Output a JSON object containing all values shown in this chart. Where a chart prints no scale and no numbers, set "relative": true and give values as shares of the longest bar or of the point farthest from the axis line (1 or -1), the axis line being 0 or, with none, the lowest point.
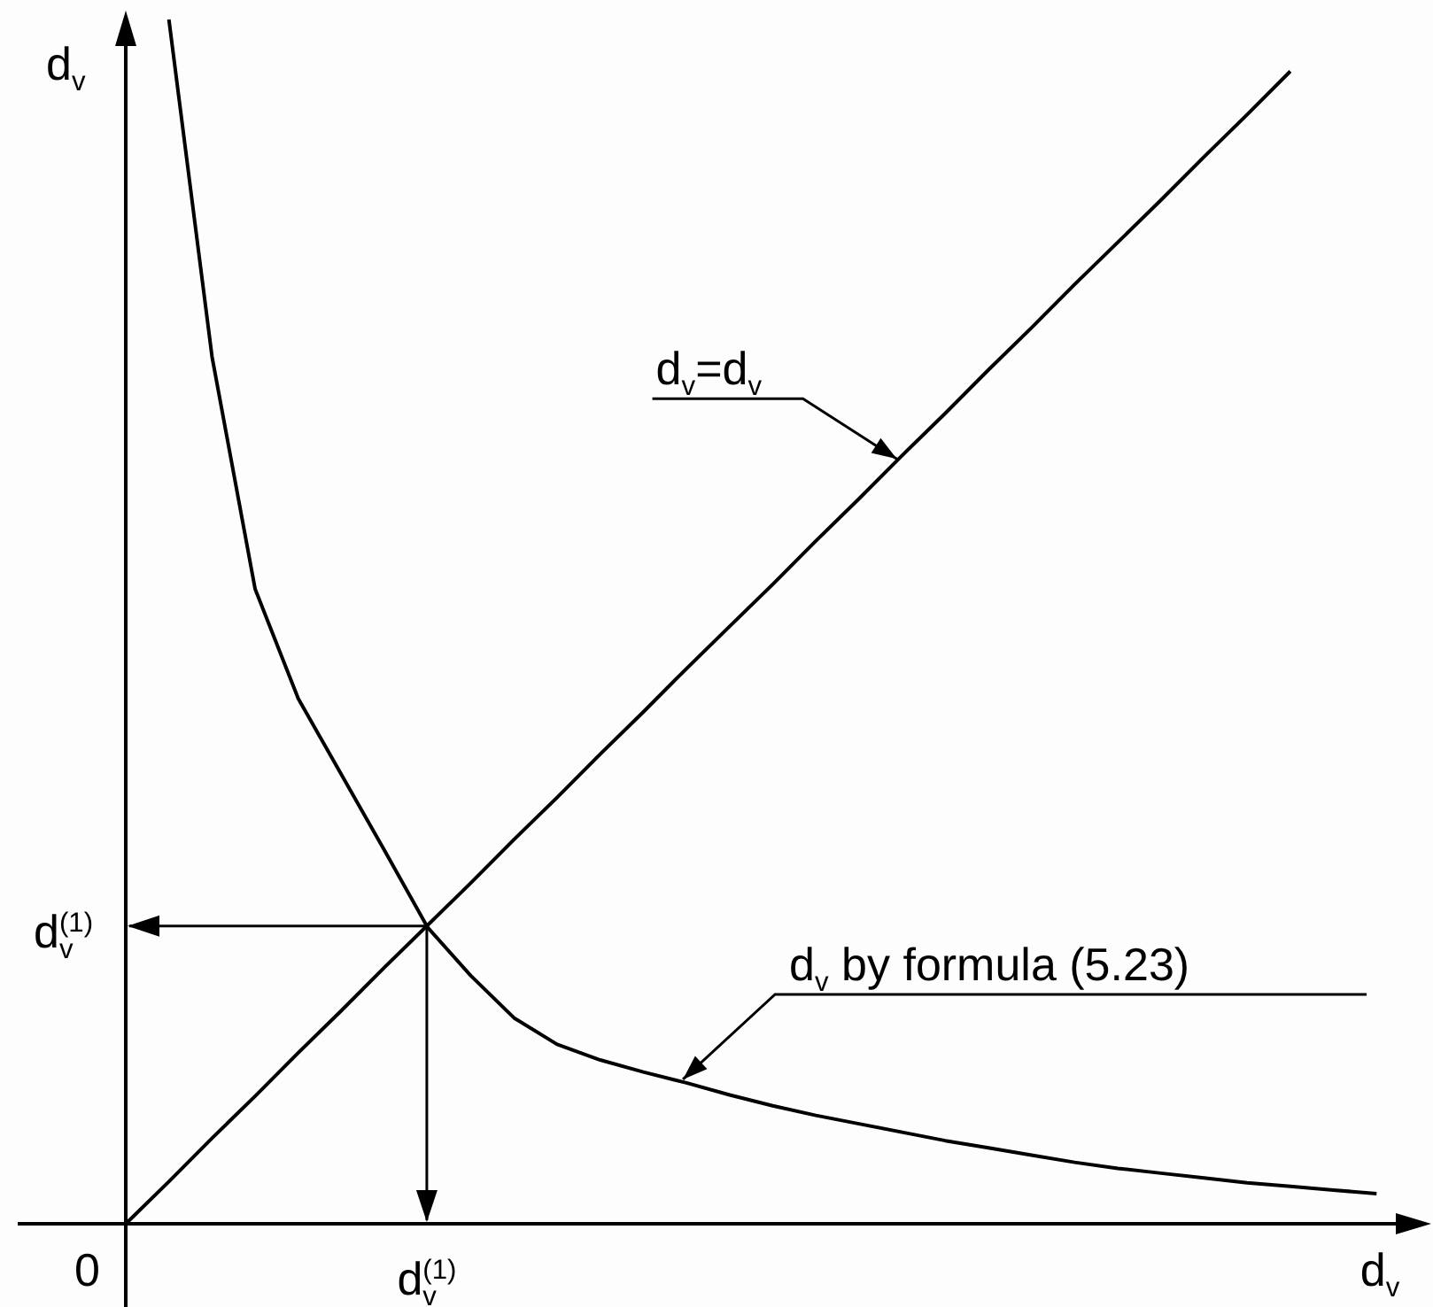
{
  "chart_data": {
    "type": "line",
    "relative": true,
    "xlabel": "d$_{v}$",
    "ylabel": "d$_{v}$",
    "annotations": [
      "0",
      "d$_{v}$$^{(1)}$",
      "d$_{v}$$^{(1)}$"
    ],
    "marker": "none",
    "line_style": "solid",
    "categories": [
      null,
      null,
      null,
      null,
      null,
      null,
      null,
      null,
      null,
      null,
      null,
      null,
      null,
      null,
      null,
      null,
      null,
      null,
      null,
      null,
      null,
      null,
      null,
      null,
      null,
      null,
      null,
      null,
      null,
      null
    ],
    "series": [
      {
        "name": "d$_{v}$=d$_{v}$",
        "color": "#000000",
        "values": [
          0,
          0.035,
          0.071,
          0.106,
          0.142,
          0.177,
          0.213,
          0.248,
          0.283,
          0.319,
          0.354,
          0.39,
          0.425,
          0.461,
          0.496,
          0.531,
          0.567,
          0.602,
          0.638,
          0.673,
          0.709,
          0.744,
          0.78,
          0.815,
          0.85,
          0.886,
          0.921,
          0.957,
          null,
          null
        ]
      },
      {
        "name": "d$_{v}$ by formula (5.23)",
        "color": "#000000",
        "values": [
          null,
          1,
          0.72,
          0.527,
          0.436,
          0.373,
          0.31,
          0.246,
          0.206,
          0.171,
          0.149,
          0.136,
          0.126,
          0.117,
          0.107,
          0.098,
          0.09,
          0.083,
          0.076,
          0.069,
          0.063,
          0.057,
          0.051,
          0.046,
          0.042,
          0.038,
          0.034,
          0.031,
          0.028,
          0.025
        ]
      }
    ]
  }
}
